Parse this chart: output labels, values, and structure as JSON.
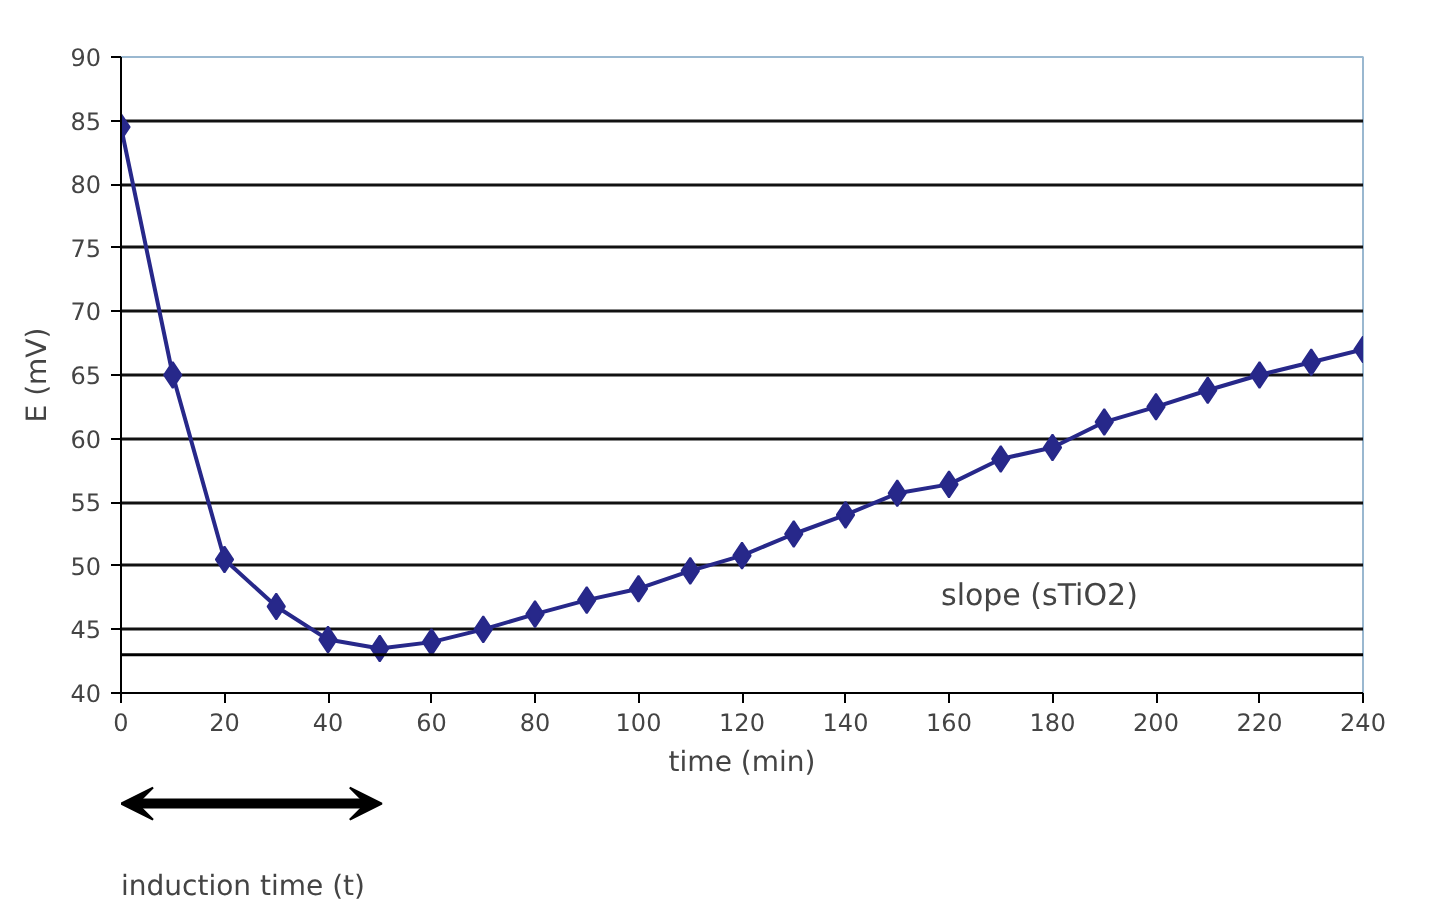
{
  "chart_data": {
    "type": "line",
    "xlabel": "time (min)",
    "ylabel": "E (mV)",
    "x": [
      0,
      10,
      20,
      30,
      40,
      50,
      60,
      70,
      80,
      90,
      100,
      110,
      120,
      130,
      140,
      150,
      160,
      170,
      180,
      190,
      200,
      210,
      220,
      230,
      240
    ],
    "series": [
      {
        "color": "#27288a",
        "values": [
          84.5,
          65,
          50.5,
          46.8,
          44.2,
          43.5,
          44,
          45,
          46.2,
          47.3,
          48.2,
          49.6,
          50.8,
          52.5,
          54,
          55.7,
          56.4,
          58.4,
          59.3,
          61.3,
          62.5,
          63.8,
          65,
          66,
          67
        ]
      }
    ],
    "xlim": [
      0,
      240
    ],
    "xticks": [
      0,
      20,
      40,
      60,
      80,
      100,
      120,
      140,
      160,
      180,
      200,
      220,
      240
    ],
    "ylim": [
      40,
      90
    ],
    "yticks": [
      40,
      45,
      50,
      55,
      60,
      65,
      70,
      75,
      80,
      85,
      90
    ],
    "grid": "y",
    "marker": "diamond",
    "line_style": "solid",
    "ref_lines": [
      {
        "axis": "y",
        "value": 43,
        "color": "#000000"
      }
    ],
    "annotations": [
      "slope (sTiO2)",
      "induction time (t)"
    ]
  }
}
